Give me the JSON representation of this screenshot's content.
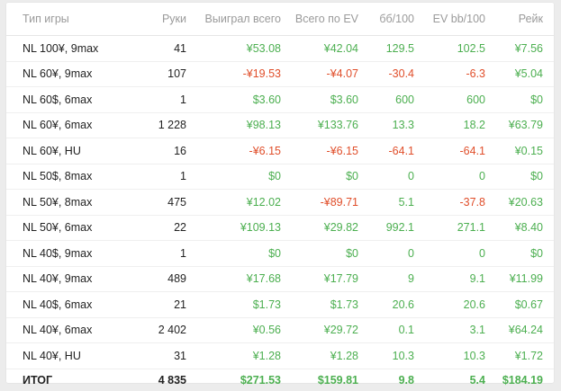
{
  "colors": {
    "positive": "#4caf50",
    "negative": "#e04e2a",
    "header": "#9a9a9a",
    "text": "#222222"
  },
  "headers": [
    "Тип игры",
    "Руки",
    "Выиграл всего",
    "Всего по EV",
    "бб/100",
    "EV bb/100",
    "Рейк"
  ],
  "rows": [
    {
      "game": "NL 100¥, 9max",
      "hands": "41",
      "won": "¥53.08",
      "won_sign": "pos",
      "ev": "¥42.04",
      "ev_sign": "pos",
      "bb100": "129.5",
      "bb_sign": "pos",
      "evbb": "102.5",
      "evbb_sign": "pos",
      "rake": "¥7.56"
    },
    {
      "game": "NL 60¥, 9max",
      "hands": "107",
      "won": "-¥19.53",
      "won_sign": "neg",
      "ev": "-¥4.07",
      "ev_sign": "neg",
      "bb100": "-30.4",
      "bb_sign": "neg",
      "evbb": "-6.3",
      "evbb_sign": "neg",
      "rake": "¥5.04"
    },
    {
      "game": "NL 60$, 6max",
      "hands": "1",
      "won": "$3.60",
      "won_sign": "pos",
      "ev": "$3.60",
      "ev_sign": "pos",
      "bb100": "600",
      "bb_sign": "pos",
      "evbb": "600",
      "evbb_sign": "pos",
      "rake": "$0"
    },
    {
      "game": "NL 60¥, 6max",
      "hands": "1 228",
      "won": "¥98.13",
      "won_sign": "pos",
      "ev": "¥133.76",
      "ev_sign": "pos",
      "bb100": "13.3",
      "bb_sign": "pos",
      "evbb": "18.2",
      "evbb_sign": "pos",
      "rake": "¥63.79"
    },
    {
      "game": "NL 60¥, HU",
      "hands": "16",
      "won": "-¥6.15",
      "won_sign": "neg",
      "ev": "-¥6.15",
      "ev_sign": "neg",
      "bb100": "-64.1",
      "bb_sign": "neg",
      "evbb": "-64.1",
      "evbb_sign": "neg",
      "rake": "¥0.15"
    },
    {
      "game": "NL 50$, 8max",
      "hands": "1",
      "won": "$0",
      "won_sign": "pos",
      "ev": "$0",
      "ev_sign": "pos",
      "bb100": "0",
      "bb_sign": "pos",
      "evbb": "0",
      "evbb_sign": "pos",
      "rake": "$0"
    },
    {
      "game": "NL 50¥, 8max",
      "hands": "475",
      "won": "¥12.02",
      "won_sign": "pos",
      "ev": "-¥89.71",
      "ev_sign": "neg",
      "bb100": "5.1",
      "bb_sign": "pos",
      "evbb": "-37.8",
      "evbb_sign": "neg",
      "rake": "¥20.63"
    },
    {
      "game": "NL 50¥, 6max",
      "hands": "22",
      "won": "¥109.13",
      "won_sign": "pos",
      "ev": "¥29.82",
      "ev_sign": "pos",
      "bb100": "992.1",
      "bb_sign": "pos",
      "evbb": "271.1",
      "evbb_sign": "pos",
      "rake": "¥8.40"
    },
    {
      "game": "NL 40$, 9max",
      "hands": "1",
      "won": "$0",
      "won_sign": "pos",
      "ev": "$0",
      "ev_sign": "pos",
      "bb100": "0",
      "bb_sign": "pos",
      "evbb": "0",
      "evbb_sign": "pos",
      "rake": "$0"
    },
    {
      "game": "NL 40¥, 9max",
      "hands": "489",
      "won": "¥17.68",
      "won_sign": "pos",
      "ev": "¥17.79",
      "ev_sign": "pos",
      "bb100": "9",
      "bb_sign": "pos",
      "evbb": "9.1",
      "evbb_sign": "pos",
      "rake": "¥11.99"
    },
    {
      "game": "NL 40$, 6max",
      "hands": "21",
      "won": "$1.73",
      "won_sign": "pos",
      "ev": "$1.73",
      "ev_sign": "pos",
      "bb100": "20.6",
      "bb_sign": "pos",
      "evbb": "20.6",
      "evbb_sign": "pos",
      "rake": "$0.67"
    },
    {
      "game": "NL 40¥, 6max",
      "hands": "2 402",
      "won": "¥0.56",
      "won_sign": "pos",
      "ev": "¥29.72",
      "ev_sign": "pos",
      "bb100": "0.1",
      "bb_sign": "pos",
      "evbb": "3.1",
      "evbb_sign": "pos",
      "rake": "¥64.24"
    },
    {
      "game": "NL 40¥, HU",
      "hands": "31",
      "won": "¥1.28",
      "won_sign": "pos",
      "ev": "¥1.28",
      "ev_sign": "pos",
      "bb100": "10.3",
      "bb_sign": "pos",
      "evbb": "10.3",
      "evbb_sign": "pos",
      "rake": "¥1.72"
    }
  ],
  "total": {
    "label": "ИТОГ",
    "hands": "4 835",
    "won": "$271.53",
    "ev": "$159.81",
    "bb100": "9.8",
    "evbb": "5.4",
    "rake": "$184.19"
  }
}
